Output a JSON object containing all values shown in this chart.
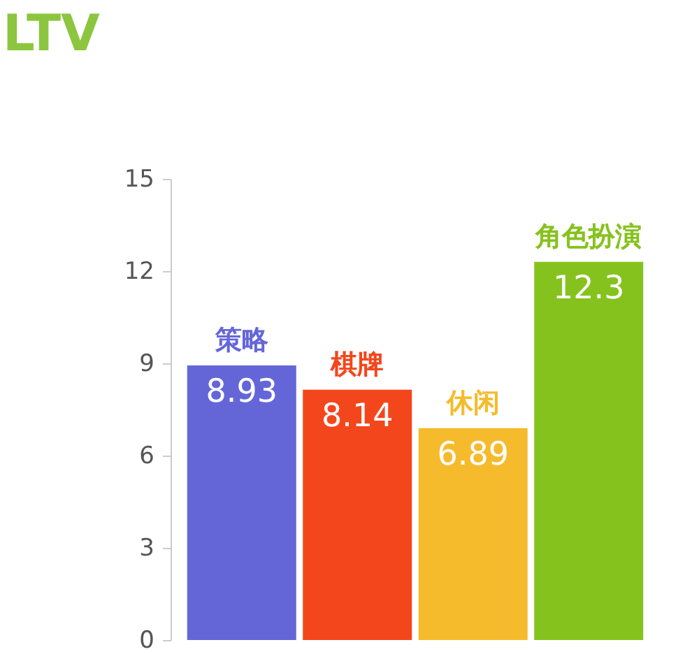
{
  "chart_data": {
    "type": "bar",
    "title": "LTV",
    "categories": [
      "策略",
      "棋牌",
      "休闲",
      "角色扮演"
    ],
    "values": [
      8.93,
      8.14,
      6.89,
      12.3
    ],
    "colors": [
      "#6466d8",
      "#f4461c",
      "#f5bb2c",
      "#86c21e"
    ],
    "ylim": [
      0,
      15
    ],
    "yticks": [
      0,
      3,
      6,
      9,
      12,
      15
    ],
    "grid": false,
    "data_labels": true,
    "tick_labels": "y"
  }
}
